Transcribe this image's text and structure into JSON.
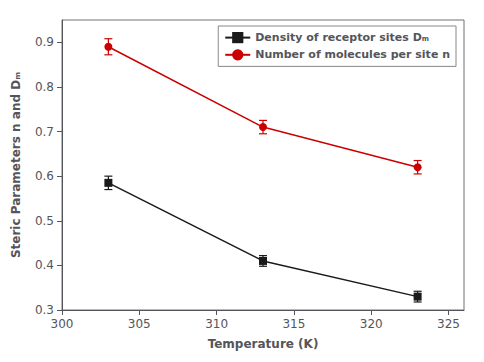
{
  "chart_data": {
    "type": "line",
    "xlabel": "Temperature (K)",
    "ylabel": "Steric Parameters n and Dₘ",
    "x": [
      303,
      313,
      323
    ],
    "series": [
      {
        "name": "Density of receptor sites Dₘ",
        "color": "#1a1a1a",
        "marker": "square",
        "values": [
          0.585,
          0.41,
          0.33
        ],
        "errors": [
          0.015,
          0.012,
          0.012
        ]
      },
      {
        "name": "Number of molecules per site n",
        "color": "#cc0000",
        "marker": "circle",
        "values": [
          0.89,
          0.71,
          0.62
        ],
        "errors": [
          0.018,
          0.015,
          0.015
        ]
      }
    ],
    "xlim": [
      300,
      326
    ],
    "ylim": [
      0.3,
      0.95
    ],
    "xticks": [
      300,
      305,
      310,
      315,
      320,
      325
    ],
    "yticks": [
      0.3,
      0.4,
      0.5,
      0.6,
      0.7,
      0.8,
      0.9
    ],
    "grid": false,
    "legend": "upper right"
  }
}
